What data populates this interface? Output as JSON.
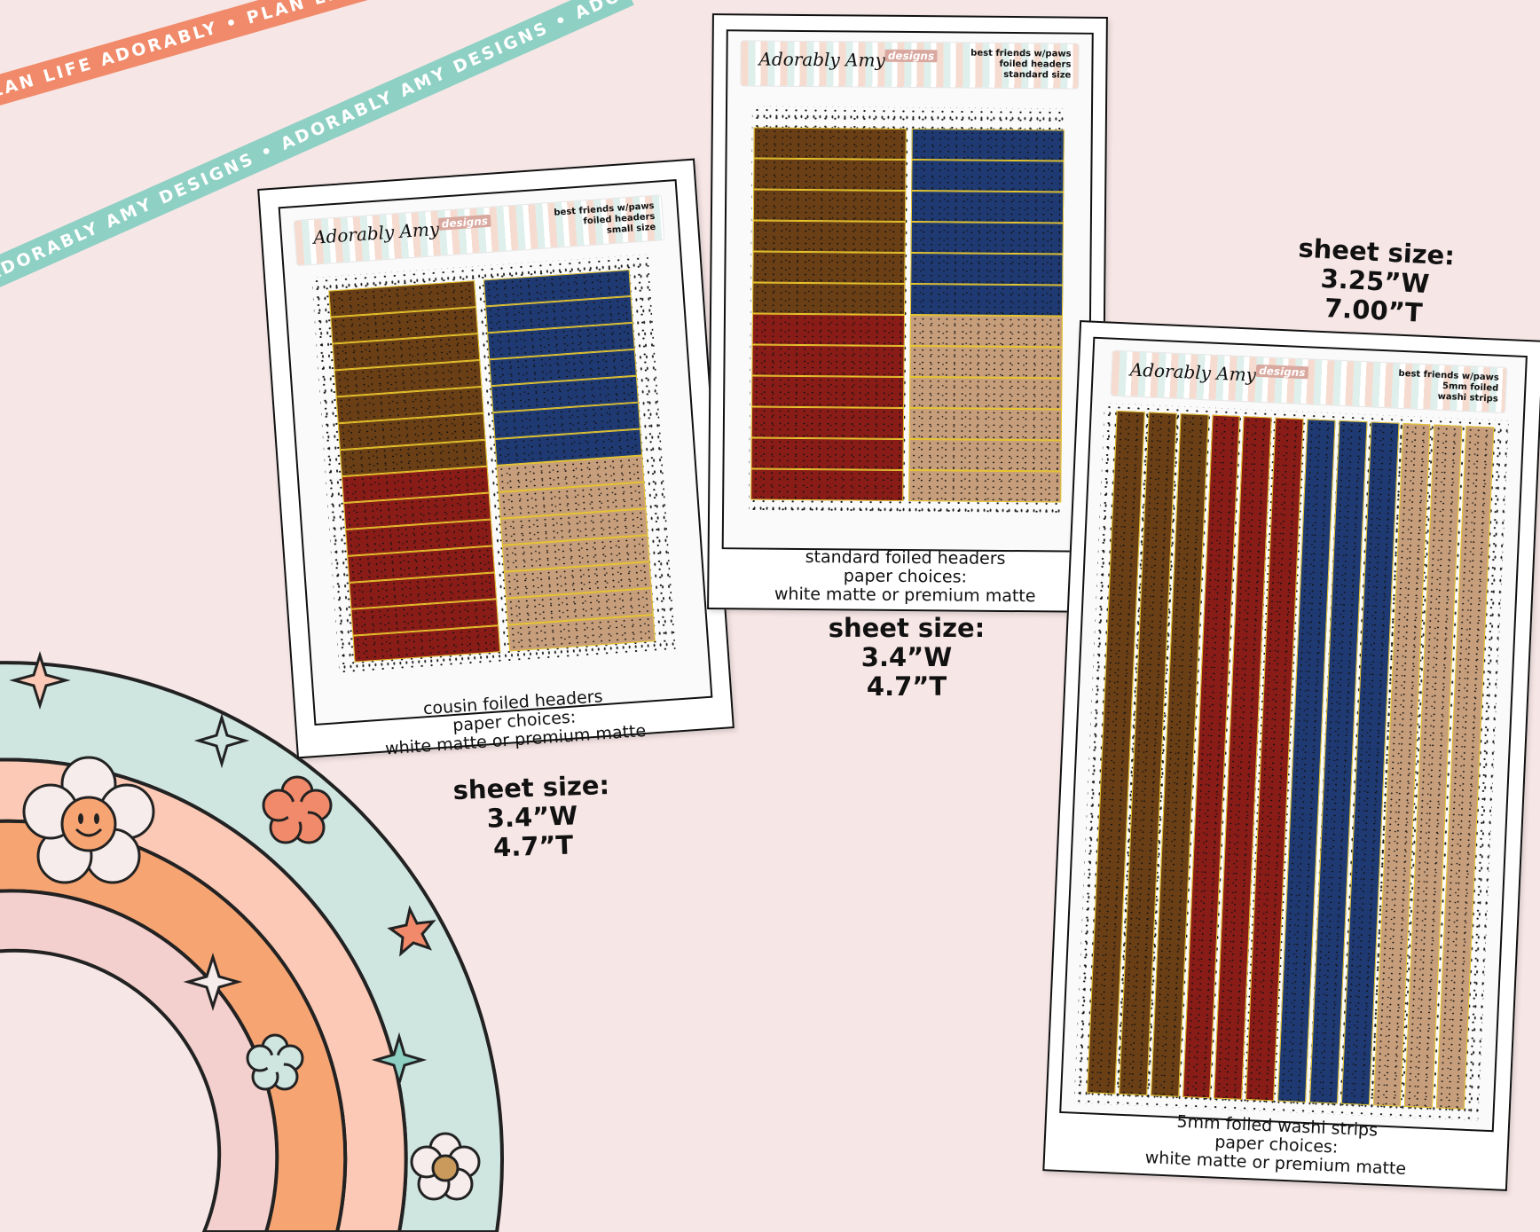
{
  "banner": {
    "ribbon1_text": "PLAN LIFE ADORABLY • PLAN LIFE ADORABLY • PLAN LIFE ADORABLY •",
    "ribbon2_text": "ADORABLY AMY DESIGNS • ADORABLY AMY DESIGNS • ADORABLY AMY DESIGNS •",
    "ribbon1_color": "#f08a6a",
    "ribbon2_color": "#8fd0c4"
  },
  "colors": {
    "brown": "#6a3f16",
    "blue": "#1f3a73",
    "red": "#8a1c18",
    "tan": "#c79e7b",
    "foil": "#e8c72c",
    "rainbow": [
      "#cfe5e0",
      "#fbc9b5",
      "#f7a473",
      "#f3d0cd"
    ]
  },
  "sheets": [
    {
      "brand": "Adorably Amy",
      "brand_sub": "designs",
      "header_lines": [
        "best friends w/paws",
        "foiled headers",
        "small size"
      ],
      "caption_lines": [
        "cousin foiled headers",
        "paper choices:",
        "white matte or premium matte"
      ],
      "size_lines": [
        "sheet size:",
        "3.4”W",
        "4.7”T"
      ]
    },
    {
      "brand": "Adorably Amy",
      "brand_sub": "designs",
      "header_lines": [
        "best friends w/paws",
        "foiled headers",
        "standard size"
      ],
      "caption_lines": [
        "standard foiled headers",
        "paper choices:",
        "white matte or premium matte"
      ],
      "size_lines": [
        "sheet size:",
        "3.4”W",
        "4.7”T"
      ]
    },
    {
      "brand": "Adorably Amy",
      "brand_sub": "designs",
      "header_lines": [
        "best friends w/paws",
        "5mm foiled",
        "washi strips"
      ],
      "caption_lines": [
        "5mm foiled washi strips",
        "paper choices:",
        "white matte or premium matte"
      ],
      "size_lines": [
        "sheet size:",
        "3.25”W",
        "7.00”T"
      ]
    }
  ],
  "icons": [
    "sparkle-icon",
    "smiley-flower-icon",
    "flower-icon",
    "star-icon"
  ]
}
